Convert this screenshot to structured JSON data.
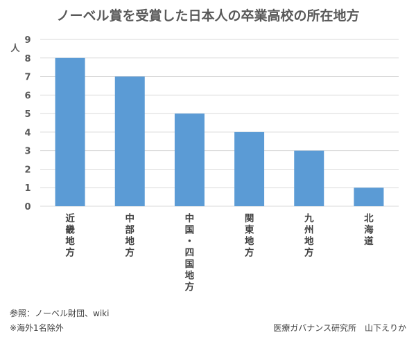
{
  "chart_data": {
    "type": "bar",
    "title": "ノーベル賞を受賞した日本人の卒業高校の所在地方",
    "ylabel": "人",
    "xlabel": "",
    "categories": [
      "近畿地方",
      "中部地方",
      "中国・四国地方",
      "関東地方",
      "九州地方",
      "北海道"
    ],
    "values": [
      8,
      7,
      5,
      4,
      3,
      1
    ],
    "ylim": [
      0,
      9
    ],
    "yticks": [
      0,
      1,
      2,
      3,
      4,
      5,
      6,
      7,
      8,
      9
    ],
    "grid": true,
    "bar_color": "#5b9bd5",
    "grid_color": "#d9d9d9"
  },
  "footer": {
    "source": "参照：ノーベル財団、wiki",
    "note": "※海外1名除外",
    "credit": "医療ガバナンス研究所　山下えりか"
  }
}
